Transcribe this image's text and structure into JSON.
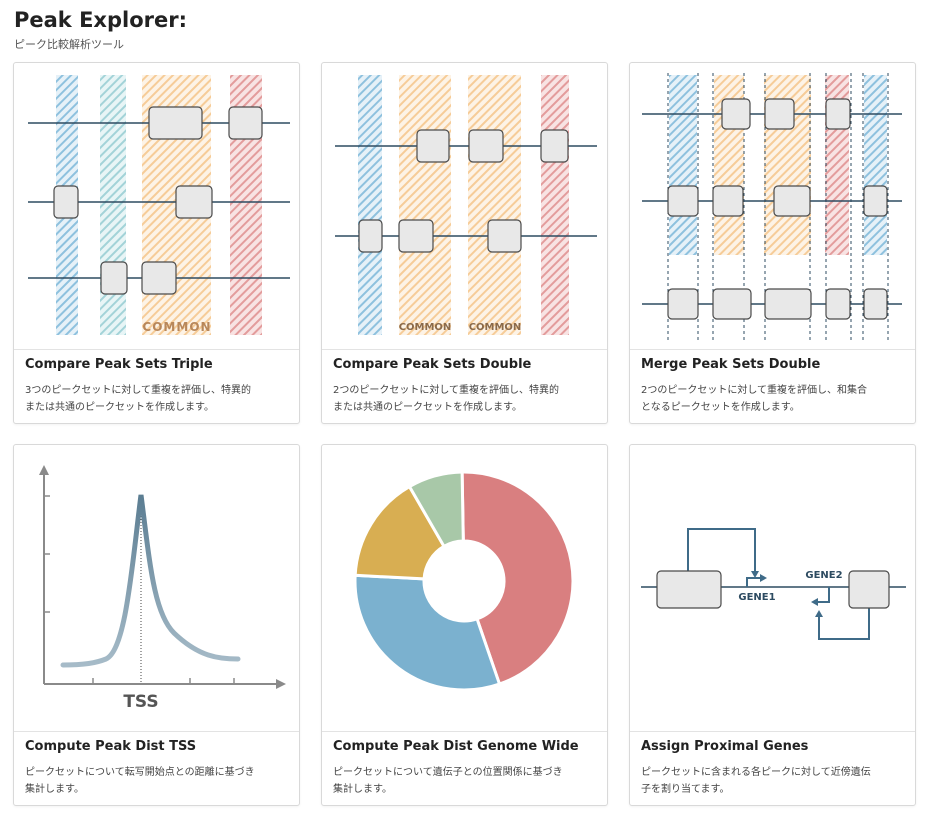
{
  "header": {
    "title": "Peak Explorer:",
    "subtitle": "ピーク比較解析ツール"
  },
  "cards": [
    {
      "title": "Compare Peak Sets Triple",
      "description": [
        "3つのピークセットに対して重複を評価し、特異的",
        "または共通のピークセットを作成します。"
      ],
      "labels": [
        "COMMON"
      ]
    },
    {
      "title": "Compare Peak Sets Double",
      "description": [
        "2つのピークセットに対して重複を評価し、特異的",
        "または共通のピークセットを作成します。"
      ],
      "labels": [
        "COMMON",
        "COMMON"
      ]
    },
    {
      "title": "Merge Peak Sets Double",
      "description": [
        "2つのピークセットに対して重複を評価し、和集合",
        "となるピークセットを作成します。"
      ]
    },
    {
      "title": "Compute Peak Dist TSS",
      "description": [
        "ピークセットについて転写開始点との距離に基づき",
        "集計します。"
      ],
      "labels": [
        "TSS"
      ]
    },
    {
      "title": "Compute Peak Dist Genome Wide",
      "description": [
        "ピークセットについて遺伝子との位置関係に基づき",
        "集計します。"
      ]
    },
    {
      "title": "Assign Proximal Genes",
      "description": [
        "ピークセットに含まれる各ピークに対して近傍遺伝",
        "子を割り当てます。"
      ],
      "labels": [
        "GENE1",
        "GENE2"
      ]
    }
  ]
}
